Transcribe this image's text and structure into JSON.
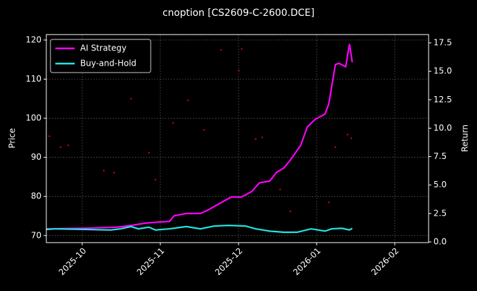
{
  "chart_data": {
    "type": "line",
    "title": "cnoption [CS2609-C-2600.DCE]",
    "ylabel": "Price",
    "y2label": "Return",
    "xlim": [
      2025.7117,
      2026.1194
    ],
    "xticks": [
      {
        "value": 2025.75,
        "label": "2025-10"
      },
      {
        "value": 2025.8333,
        "label": "2025-11"
      },
      {
        "value": 2025.9167,
        "label": "2025-12"
      },
      {
        "value": 2026.0,
        "label": "2026-01"
      },
      {
        "value": 2026.0833,
        "label": "2026-02"
      }
    ],
    "ylim": [
      68.2,
      121.4
    ],
    "yticks": [
      70,
      80,
      90,
      100,
      110,
      120
    ],
    "y2lim": [
      -0.06,
      18.23
    ],
    "y2ticks": [
      {
        "value": 0,
        "label": "0.0"
      },
      2.5,
      {
        "value": 5,
        "label": "5.0"
      },
      7.5,
      {
        "value": 10,
        "label": "10.0"
      },
      12.5,
      {
        "value": 15,
        "label": "15.0"
      },
      17.5
    ],
    "grid": true,
    "legend": "upper left",
    "background": "#000000",
    "series": [
      {
        "type": "scatter",
        "color": "#d0021b",
        "x": [
          2025.715,
          2025.727,
          2025.735,
          2025.773,
          2025.784,
          2025.802,
          2025.821,
          2025.828,
          2025.847,
          2025.863,
          2025.88,
          2025.898,
          2025.917,
          2025.92,
          2025.935,
          2025.942,
          2025.961,
          2025.972,
          2026.013,
          2026.02,
          2026.033,
          2026.037
        ],
        "values": [
          95.4,
          92.6,
          93.1,
          86.6,
          86.1,
          105,
          91.2,
          84.3,
          98.8,
          104.6,
          97,
          117.5,
          112.2,
          117.7,
          94.7,
          95.1,
          81.8,
          76.2,
          78.5,
          92.6,
          95.8,
          94.9
        ]
      },
      {
        "name": "AI Strategy",
        "color": "#ff00ff",
        "axis": "y2",
        "x": [
          2025.712,
          2025.751,
          2025.788,
          2025.802,
          2025.817,
          2025.832,
          2025.843,
          2025.848,
          2025.861,
          2025.876,
          2025.884,
          2025.898,
          2025.909,
          2025.92,
          2025.931,
          2025.939,
          2025.95,
          2025.957,
          2025.965,
          2025.972,
          2025.983,
          2025.99,
          2025.998,
          2026.009,
          2026.013,
          2026.02,
          2026.024,
          2026.031,
          2026.035,
          2026.038
        ],
        "values": [
          1.15,
          1.2,
          1.3,
          1.45,
          1.65,
          1.75,
          1.8,
          2.3,
          2.5,
          2.5,
          2.8,
          3.45,
          3.95,
          3.95,
          4.45,
          5.2,
          5.35,
          6.1,
          6.5,
          7.2,
          8.5,
          10.1,
          10.75,
          11.25,
          12.15,
          15.6,
          15.7,
          15.4,
          17.4,
          15.8
        ]
      },
      {
        "name": "Buy-and-Hold",
        "color": "#22e5e5",
        "axis": "y2",
        "x": [
          2025.712,
          2025.721,
          2025.751,
          2025.78,
          2025.791,
          2025.802,
          2025.81,
          2025.821,
          2025.828,
          2025.843,
          2025.861,
          2025.876,
          2025.891,
          2025.906,
          2025.924,
          2025.935,
          2025.95,
          2025.965,
          2025.979,
          2025.994,
          2026.009,
          2026.016,
          2026.027,
          2026.035,
          2026.038
        ],
        "values": [
          1.1,
          1.15,
          1.1,
          1.05,
          1.15,
          1.35,
          1.15,
          1.3,
          1.05,
          1.15,
          1.35,
          1.15,
          1.4,
          1.45,
          1.4,
          1.15,
          0.95,
          0.85,
          0.85,
          1.15,
          0.95,
          1.15,
          1.2,
          1.05,
          1.2
        ]
      }
    ]
  }
}
